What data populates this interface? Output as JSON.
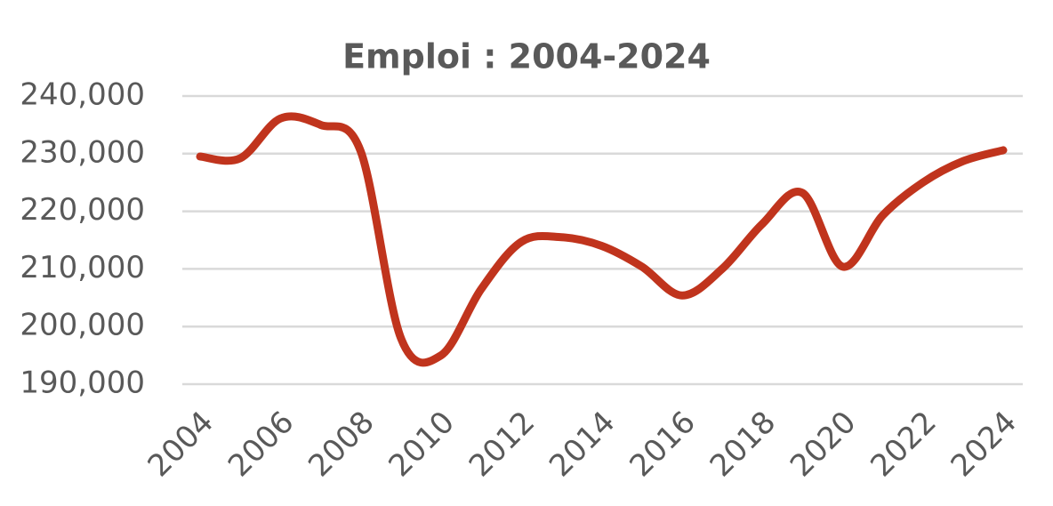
{
  "chart_data": {
    "type": "line",
    "title": "Emploi : 2004-2024",
    "x": [
      2004,
      2005,
      2006,
      2007,
      2008,
      2009,
      2010,
      2011,
      2012,
      2013,
      2014,
      2015,
      2016,
      2017,
      2018,
      2019,
      2020,
      2021,
      2022,
      2023,
      2024
    ],
    "series": [
      {
        "name": "Emploi",
        "color": "#c0341d",
        "values": [
          229500,
          229200,
          236100,
          235000,
          230400,
          198000,
          195000,
          206500,
          214700,
          215500,
          214000,
          210400,
          205400,
          210000,
          217800,
          223200,
          210400,
          219300,
          225000,
          228700,
          230600
        ]
      }
    ],
    "xlim": [
      2004,
      2024
    ],
    "xticks": [
      2004,
      2006,
      2008,
      2010,
      2012,
      2014,
      2016,
      2018,
      2020,
      2022,
      2024
    ],
    "ylim": [
      190000,
      240000
    ],
    "yticks": [
      {
        "value": 190000,
        "label": "190,000"
      },
      {
        "value": 200000,
        "label": "200,000"
      },
      {
        "value": 210000,
        "label": "210,000"
      },
      {
        "value": 220000,
        "label": "220,000"
      },
      {
        "value": 230000,
        "label": "230,000"
      },
      {
        "value": 240000,
        "label": "240,000"
      }
    ],
    "grid": true
  }
}
